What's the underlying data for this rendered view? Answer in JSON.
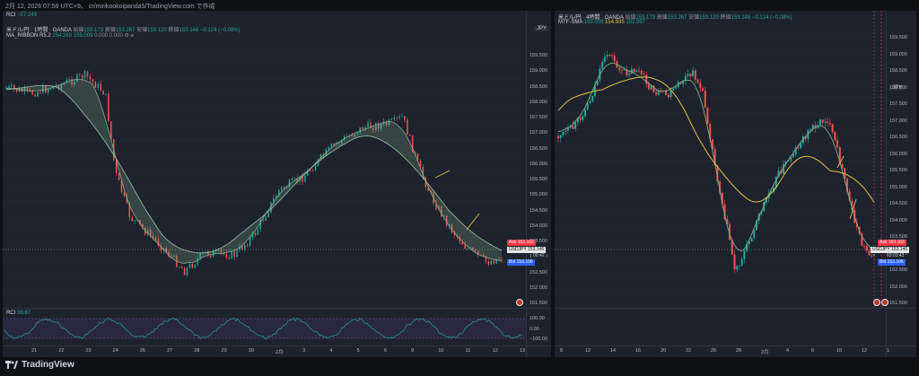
{
  "caption": "2月 12, 2026 07:59 UTC+9、 cr/mirikookoipanda5/TradingView.com で作成",
  "colors": {
    "up": "#26a69a",
    "down": "#ef5350",
    "ribbon": "#7fae8c",
    "ema": "#e4c34a",
    "ask": "#f23645",
    "bid": "#2962ff"
  },
  "left": {
    "rci_top": {
      "name": "RCI",
      "value": "−57.243"
    },
    "symbol": "米ドル/円 · 1時間 · OANDA",
    "ohlc": [
      {
        "k": "始値",
        "v": "153.173"
      },
      {
        "k": "高値",
        "v": "153.267"
      },
      {
        "k": "安値",
        "v": "153.120"
      },
      {
        "k": "終値",
        "v": "153.146"
      },
      {
        "k": "",
        "v": "−0.124 (−0.08%)"
      }
    ],
    "indicator": {
      "name": "MA_RIBBON R5.2",
      "v1": "154.260",
      "v2": "155.009",
      "v3": "0.000",
      "v4": "0.000"
    },
    "currency": "JPY",
    "price_ticks": [
      "159.500",
      "159.000",
      "158.500",
      "158.000",
      "157.500",
      "157.000",
      "156.500",
      "156.000",
      "155.500",
      "155.000",
      "154.500",
      "154.000",
      "153.500",
      "153.000",
      "152.500",
      "152.000",
      "151.500"
    ],
    "ask": {
      "label": "Ask",
      "price": "153.163"
    },
    "last": {
      "label": "USDJPY",
      "price": "153.146",
      "timer": "00:42"
    },
    "bid": {
      "label": "Bid",
      "price": "153.106"
    },
    "rci_pane": {
      "name": "RCI",
      "value": "36.87"
    },
    "rci_ticks": [
      "100.00",
      "0.00",
      "−100.00"
    ],
    "time_ticks": [
      "21",
      "22",
      "23",
      "24",
      "26",
      "27",
      "28",
      "29",
      "30",
      "2月",
      "3",
      "4",
      "5",
      "6",
      "9",
      "10",
      "11",
      "12",
      "13"
    ]
  },
  "right": {
    "symbol": "米ドル/円 · 4時間 · OANDA",
    "ohlc": [
      {
        "k": "始値",
        "v": "153.173"
      },
      {
        "k": "高値",
        "v": "153.267"
      },
      {
        "k": "安値",
        "v": "153.120"
      },
      {
        "k": "終値",
        "v": "153.146"
      },
      {
        "k": "",
        "v": "−0.124 (−0.08%)"
      }
    ],
    "indicator": {
      "name": "MTF-SMA",
      "v1": "155.009",
      "v2": "154.935",
      "v3": "152.997"
    },
    "currency": "JPY",
    "price_ticks": [
      "159.500",
      "159.000",
      "158.500",
      "158.000",
      "157.500",
      "157.000",
      "156.500",
      "156.000",
      "155.500",
      "155.000",
      "154.500",
      "154.000",
      "153.500",
      "153.000",
      "152.500",
      "152.000",
      "151.500"
    ],
    "ask": {
      "label": "Ask",
      "price": "153.163"
    },
    "last": {
      "label": "USDJPY",
      "price": "153.146",
      "timer": "03:03:43"
    },
    "bid": {
      "label": "Bid",
      "price": "153.106"
    },
    "time_ticks": [
      "8",
      "12",
      "14",
      "16",
      "20",
      "22",
      "26",
      "28",
      "2月",
      "4",
      "6",
      "10",
      "12",
      "1"
    ]
  },
  "brand": "TradingView"
}
